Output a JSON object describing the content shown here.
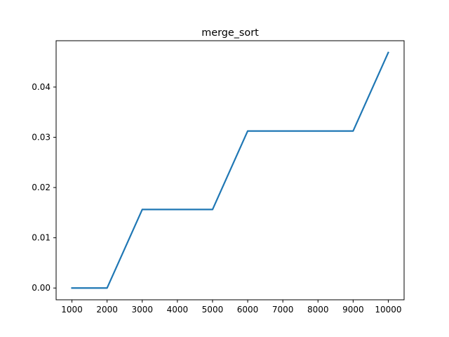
{
  "chart_data": {
    "type": "line",
    "title": "merge_sort",
    "xlabel": "",
    "ylabel": "",
    "x": [
      1000,
      2000,
      3000,
      4000,
      5000,
      6000,
      7000,
      8000,
      9000,
      10000
    ],
    "series": [
      {
        "values": [
          0.0,
          0.0,
          0.015625,
          0.015625,
          0.015625,
          0.03125,
          0.03125,
          0.03125,
          0.03125,
          0.046875
        ],
        "color": "#1f77b4"
      }
    ],
    "xlim": [
      550,
      10450
    ],
    "ylim": [
      -0.00234375,
      0.04921875
    ],
    "xticks": [
      1000,
      2000,
      3000,
      4000,
      5000,
      6000,
      7000,
      8000,
      9000,
      10000
    ],
    "xtick_labels": [
      "1000",
      "2000",
      "3000",
      "4000",
      "5000",
      "6000",
      "7000",
      "8000",
      "9000",
      "10000"
    ],
    "yticks": [
      0.0,
      0.01,
      0.02,
      0.03,
      0.04
    ],
    "ytick_labels": [
      "0.00",
      "0.01",
      "0.02",
      "0.03",
      "0.04"
    ],
    "grid": false,
    "legend": "none"
  }
}
